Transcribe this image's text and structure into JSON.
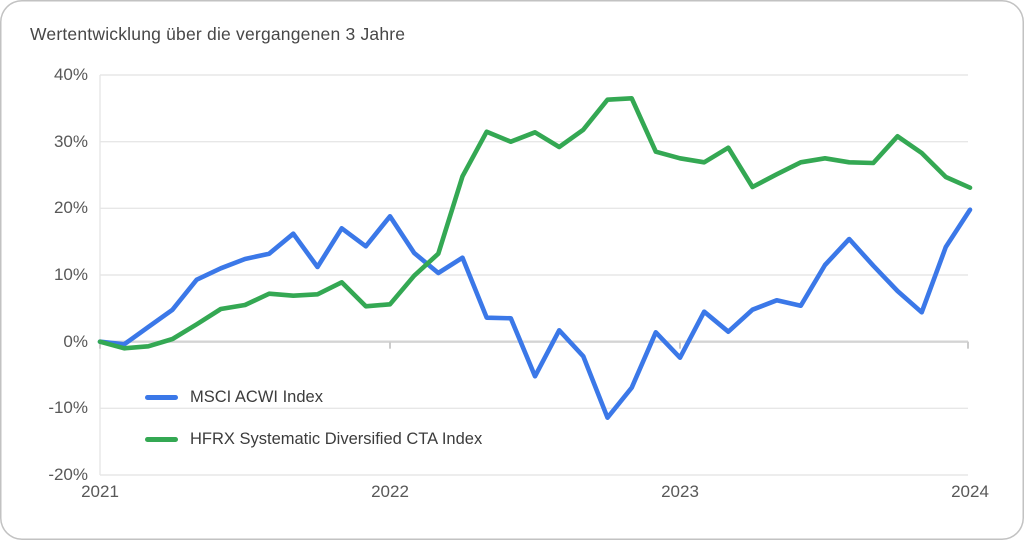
{
  "chart_data": {
    "type": "line",
    "title": "Wertentwicklung über die vergangenen 3 Jahre",
    "x_tick_labels": [
      "2021",
      "2022",
      "2023",
      "2024"
    ],
    "x_tick_positions": [
      0,
      12,
      24,
      36
    ],
    "x_count": 37,
    "y_ticks": [
      40,
      30,
      20,
      10,
      0,
      -10,
      -20
    ],
    "y_tick_labels": [
      "40%",
      "30%",
      "20%",
      "10%",
      "0%",
      "-10%",
      "-20%"
    ],
    "ylim": [
      -20,
      40
    ],
    "grid": true,
    "legend_position": "inside-bottom-left",
    "series": [
      {
        "name": "MSCI ACWI Index",
        "color": "#3B78E8",
        "values": [
          0,
          -0.4,
          2.2,
          4.8,
          9.3,
          11.0,
          12.4,
          13.2,
          16.2,
          11.2,
          17.0,
          14.3,
          18.8,
          13.3,
          10.3,
          12.6,
          3.6,
          3.5,
          -5.2,
          1.7,
          -2.2,
          -11.4,
          -6.9,
          1.4,
          -2.4,
          4.5,
          1.5,
          4.8,
          6.2,
          5.4,
          11.5,
          15.4,
          11.4,
          7.6,
          4.4,
          14.2,
          19.8
        ]
      },
      {
        "name": "HFRX Systematic Diversified CTA Index",
        "color": "#34A853",
        "values": [
          0,
          -1.0,
          -0.7,
          0.4,
          2.6,
          4.9,
          5.5,
          7.2,
          6.9,
          7.1,
          8.9,
          5.3,
          5.6,
          9.9,
          13.2,
          24.8,
          31.5,
          30.0,
          31.4,
          29.2,
          31.8,
          36.3,
          36.5,
          28.5,
          27.5,
          26.9,
          29.1,
          23.2,
          25.1,
          26.9,
          27.5,
          26.9,
          26.8,
          30.8,
          28.3,
          24.7,
          23.1
        ]
      }
    ],
    "style": {
      "grid_color": "#e7e7e7",
      "zero_line_color": "#d4d4d4",
      "tick_color": "#cccccc",
      "axis_text_color": "#585858",
      "title_color": "#474747"
    }
  }
}
